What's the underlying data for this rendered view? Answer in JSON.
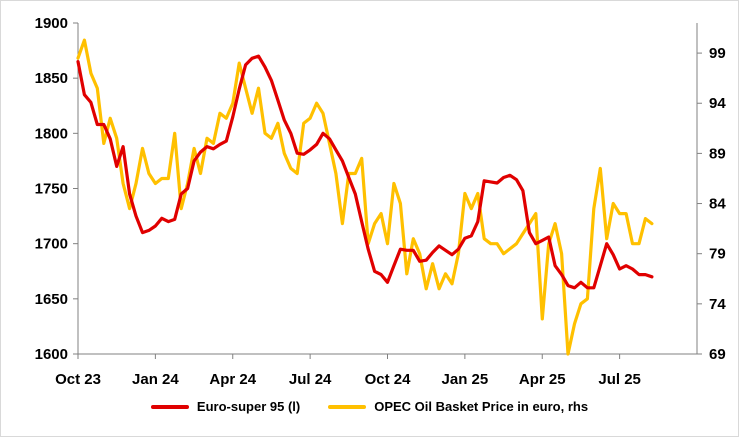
{
  "chart_data": {
    "type": "line",
    "x_tick_labels": [
      "Oct 23",
      "Jan 24",
      "Apr 24",
      "Jul 24",
      "Oct 24",
      "Jan 25",
      "Apr 25",
      "Jul 25"
    ],
    "y_left": {
      "ticks": [
        "1600",
        "1650",
        "1700",
        "1750",
        "1800",
        "1850",
        "1900"
      ],
      "lim": [
        1600,
        1900
      ]
    },
    "y_right": {
      "ticks": [
        "69",
        "74",
        "79",
        "84",
        "89",
        "94",
        "99"
      ],
      "lim": [
        69,
        102
      ]
    },
    "legend_position": "bottom",
    "grid": false,
    "series": [
      {
        "name": "Euro-super 95  (l)",
        "axis": "left",
        "color": "#e00000",
        "x_months": [
          0,
          0.25,
          0.5,
          0.75,
          1,
          1.25,
          1.5,
          1.75,
          2,
          2.25,
          2.5,
          2.75,
          3,
          3.25,
          3.5,
          3.75,
          4,
          4.25,
          4.5,
          4.75,
          5,
          5.25,
          5.5,
          5.75,
          6,
          6.25,
          6.5,
          6.75,
          7,
          7.25,
          7.5,
          7.75,
          8,
          8.25,
          8.5,
          8.75,
          9,
          9.25,
          9.5,
          9.75,
          10,
          10.25,
          10.5,
          10.75,
          11,
          11.25,
          11.5,
          11.75,
          12,
          12.25,
          12.5,
          12.75,
          13,
          13.25,
          13.5,
          13.75,
          14,
          14.25,
          14.5,
          14.75,
          15,
          15.25,
          15.5,
          15.75,
          16,
          16.25,
          16.5,
          16.75,
          17,
          17.25,
          17.5,
          17.75,
          18,
          18.25,
          18.5,
          18.75,
          19,
          19.25,
          19.5,
          19.75,
          20,
          20.25,
          20.5,
          20.75,
          21,
          21.25,
          21.5,
          21.75,
          22,
          22.25
        ],
        "values": [
          1865,
          1835,
          1828,
          1808,
          1808,
          1795,
          1770,
          1788,
          1745,
          1725,
          1710,
          1712,
          1716,
          1723,
          1720,
          1722,
          1745,
          1750,
          1775,
          1783,
          1788,
          1786,
          1790,
          1793,
          1815,
          1840,
          1862,
          1868,
          1870,
          1860,
          1848,
          1830,
          1812,
          1800,
          1782,
          1781,
          1785,
          1790,
          1800,
          1795,
          1785,
          1775,
          1760,
          1745,
          1720,
          1695,
          1675,
          1672,
          1665,
          1680,
          1695,
          1694,
          1694,
          1684,
          1685,
          1692,
          1698,
          1694,
          1690,
          1695,
          1705,
          1707,
          1720,
          1757,
          1756,
          1755,
          1760,
          1762,
          1758,
          1748,
          1710,
          1700,
          1703,
          1706,
          1680,
          1672,
          1662,
          1660,
          1665,
          1660,
          1660,
          1680,
          1700,
          1690,
          1677,
          1680,
          1677,
          1672,
          1672,
          1670
        ]
      },
      {
        "name": "OPEC Oil Basket Price in euro, rhs",
        "axis": "right",
        "color": "#ffc000",
        "x_months": [
          0,
          0.25,
          0.5,
          0.75,
          1,
          1.25,
          1.5,
          1.75,
          2,
          2.25,
          2.5,
          2.75,
          3,
          3.25,
          3.5,
          3.75,
          4,
          4.25,
          4.5,
          4.75,
          5,
          5.25,
          5.5,
          5.75,
          6,
          6.25,
          6.5,
          6.75,
          7,
          7.25,
          7.5,
          7.75,
          8,
          8.25,
          8.5,
          8.75,
          9,
          9.25,
          9.5,
          9.75,
          10,
          10.25,
          10.5,
          10.75,
          11,
          11.25,
          11.5,
          11.75,
          12,
          12.25,
          12.5,
          12.75,
          13,
          13.25,
          13.5,
          13.75,
          14,
          14.25,
          14.5,
          14.75,
          15,
          15.25,
          15.5,
          15.75,
          16,
          16.25,
          16.5,
          16.75,
          17,
          17.25,
          17.5,
          17.75,
          18,
          18.25,
          18.5,
          18.75,
          19,
          19.25,
          19.5,
          19.75,
          20,
          20.25,
          20.5,
          20.75,
          21,
          21.25,
          21.5,
          21.75,
          22,
          22.25
        ],
        "values": [
          98.5,
          100.3,
          97,
          95.5,
          90,
          92.5,
          90.5,
          86,
          83.5,
          86,
          89.5,
          87,
          86,
          86.5,
          86.5,
          91,
          83.5,
          86,
          89.5,
          87,
          90.5,
          90,
          93,
          92.5,
          94,
          98,
          95.5,
          93,
          95.5,
          91,
          90.5,
          92,
          89,
          87.5,
          87,
          92,
          92.5,
          94,
          93,
          90,
          87,
          82,
          87,
          87,
          88.5,
          80,
          82,
          83,
          80,
          86,
          84,
          77,
          80.5,
          79,
          75.5,
          78,
          75.5,
          77,
          76,
          79,
          85,
          83.5,
          85,
          80.5,
          80,
          80,
          79,
          79.5,
          80,
          81,
          82,
          83,
          72.5,
          80,
          82,
          79,
          69,
          72,
          74,
          74.5,
          83.5,
          87.5,
          80.5,
          84,
          83,
          83,
          80,
          80,
          82.5,
          82
        ]
      }
    ]
  }
}
